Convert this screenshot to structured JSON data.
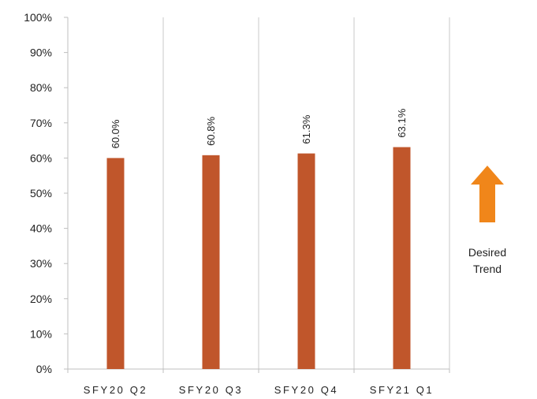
{
  "chart_data": {
    "type": "bar",
    "categories": [
      "SFY20 Q2",
      "SFY20 Q3",
      "SFY20 Q4",
      "SFY21 Q1"
    ],
    "values": [
      60.0,
      60.8,
      61.3,
      63.1
    ],
    "data_labels": [
      "60.0%",
      "60.8%",
      "61.3%",
      "63.1%"
    ],
    "y_ticks": [
      "0%",
      "10%",
      "20%",
      "30%",
      "40%",
      "50%",
      "60%",
      "70%",
      "80%",
      "90%",
      "100%"
    ],
    "ylim": [
      0,
      100
    ],
    "grid": "vertical category separators",
    "bar_color": "#C0562B",
    "title": "",
    "xlabel": "",
    "ylabel": ""
  },
  "trend_indicator": {
    "label": "Desired\nTrend",
    "direction": "up",
    "color": "#F0861A"
  }
}
